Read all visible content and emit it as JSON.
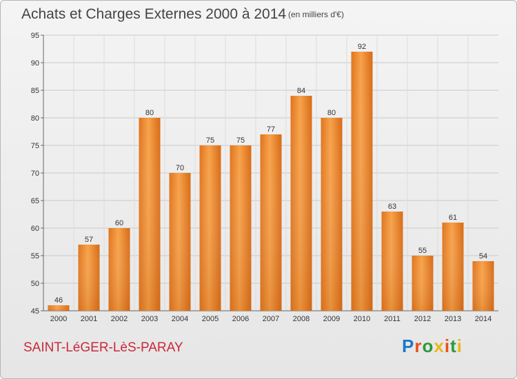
{
  "chart_data": {
    "type": "bar",
    "title": "Achats et Charges Externes 2000 à 2014",
    "subtitle": "(en milliers d'€)",
    "xlabel": "",
    "ylabel": "",
    "categories": [
      "2000",
      "2001",
      "2002",
      "2003",
      "2004",
      "2005",
      "2006",
      "2007",
      "2008",
      "2009",
      "2010",
      "2011",
      "2012",
      "2013",
      "2014"
    ],
    "values": [
      46,
      57,
      60,
      80,
      70,
      75,
      75,
      77,
      84,
      80,
      92,
      63,
      55,
      61,
      54
    ],
    "ylim": [
      45,
      95
    ],
    "yticks": [
      45,
      50,
      55,
      60,
      65,
      70,
      75,
      80,
      85,
      90,
      95
    ],
    "grid": true,
    "legend": "none",
    "bar_color": "#f0892a"
  },
  "footer": {
    "commune": "SAINT-LéGER-LèS-PARAY",
    "brand": "Proxiti"
  },
  "colors": {
    "commune_text": "#c8283a",
    "brand_letters": [
      "#1f77c8",
      "#e8511c",
      "#2a9a3a",
      "#e8b81c",
      "#e8511c",
      "#2a9a3a",
      "#e8b81c"
    ]
  }
}
